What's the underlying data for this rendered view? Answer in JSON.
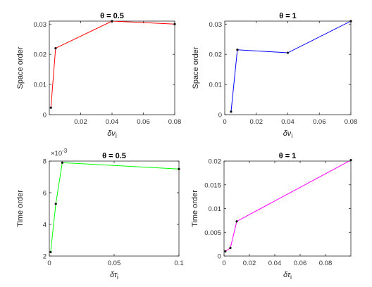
{
  "chart_data": [
    {
      "type": "line",
      "title": "θ = 0.5",
      "xlabel": "δν",
      "xlabel_sub": "i",
      "ylabel": "Space order",
      "xlim": [
        0,
        0.08
      ],
      "ylim": [
        0,
        0.031
      ],
      "xticks": [
        0.02,
        0.04,
        0.06,
        0.08
      ],
      "xtick_labels": [
        "0.02",
        "0.04",
        "0.06",
        "0.08"
      ],
      "yticks": [
        0,
        0.01,
        0.02,
        0.03
      ],
      "ytick_labels": [
        "0",
        "0.01",
        "0.02",
        "0.03"
      ],
      "series": [
        {
          "color": "#ff0000",
          "x": [
            0.001,
            0.004,
            0.04,
            0.08
          ],
          "y": [
            0.0023,
            0.022,
            0.031,
            0.03
          ]
        }
      ]
    },
    {
      "type": "line",
      "title": "θ = 1",
      "xlabel": "δν",
      "xlabel_sub": "i",
      "ylabel": "Space order",
      "xlim": [
        0,
        0.08
      ],
      "ylim": [
        0,
        0.031
      ],
      "xticks": [
        0,
        0.02,
        0.04,
        0.06,
        0.08
      ],
      "xtick_labels": [
        "0",
        "0.02",
        "0.04",
        "0.06",
        "0.08"
      ],
      "yticks": [
        0,
        0.01,
        0.02,
        0.03
      ],
      "ytick_labels": [
        "0",
        "0.01",
        "0.02",
        "0.03"
      ],
      "series": [
        {
          "color": "#0000ff",
          "x": [
            0.004,
            0.008,
            0.04,
            0.08
          ],
          "y": [
            0.001,
            0.0215,
            0.0205,
            0.031
          ]
        }
      ]
    },
    {
      "type": "line",
      "title": "θ = 0.5",
      "xlabel": "δτ",
      "xlabel_sub": "i",
      "ylabel": "Time order",
      "exponent_label": "×10",
      "exponent_power": "-3",
      "xlim": [
        0,
        0.1
      ],
      "ylim": [
        0.002,
        0.008
      ],
      "xticks": [
        0,
        0.05,
        0.1
      ],
      "xtick_labels": [
        "0",
        "0.05",
        "0.1"
      ],
      "yticks": [
        0.002,
        0.004,
        0.006,
        0.008
      ],
      "ytick_labels": [
        "2",
        "4",
        "6",
        "8"
      ],
      "series": [
        {
          "color": "#00ff00",
          "x": [
            0.001,
            0.005,
            0.01,
            0.1
          ],
          "y": [
            0.00225,
            0.0053,
            0.0079,
            0.0075
          ]
        }
      ]
    },
    {
      "type": "line",
      "title": "θ = 1",
      "xlabel": "δτ",
      "xlabel_sub": "i",
      "ylabel": "Time order",
      "xlim": [
        0,
        0.1
      ],
      "ylim": [
        0,
        0.02
      ],
      "xticks": [
        0,
        0.02,
        0.04,
        0.06,
        0.08
      ],
      "xtick_labels": [
        "0",
        "0.02",
        "0.04",
        "0.06",
        "0.08"
      ],
      "yticks": [
        0,
        0.005,
        0.01,
        0.015,
        0.02
      ],
      "ytick_labels": [
        "0",
        "0.005",
        "0.01",
        "0.015",
        "0.02"
      ],
      "series": [
        {
          "color": "#ff00ff",
          "x": [
            0.001,
            0.005,
            0.01,
            0.1
          ],
          "y": [
            0.001,
            0.0017,
            0.0073,
            0.0202
          ]
        }
      ]
    }
  ]
}
